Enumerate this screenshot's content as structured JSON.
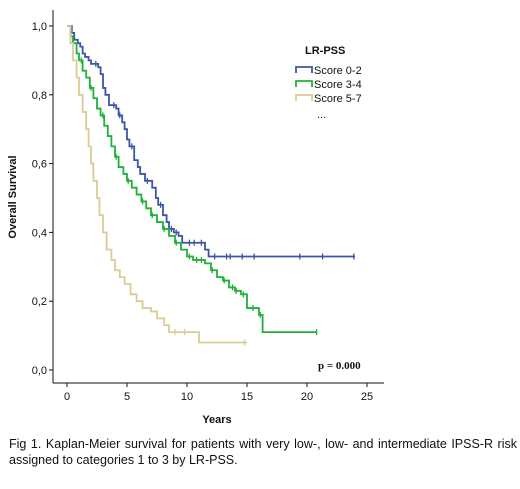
{
  "chart_data": {
    "type": "line",
    "subtype": "kaplan-meier",
    "xlabel": "Years",
    "ylabel": "Overall Survival",
    "xlim": [
      0,
      25
    ],
    "ylim": [
      0,
      1
    ],
    "x_ticks": [
      0,
      5,
      10,
      15,
      20,
      25
    ],
    "y_ticks": [
      0.0,
      0.2,
      0.4,
      0.6,
      0.8,
      1.0
    ],
    "x_tick_labels": [
      "0",
      "5",
      "10",
      "15",
      "20",
      "25"
    ],
    "y_tick_labels": [
      "0,0",
      "0,2",
      "0,4",
      "0,6",
      "0,8",
      "1,0"
    ],
    "grid": false,
    "legend": {
      "title": "LR-PSS",
      "placement": "top-right",
      "more": "..."
    },
    "annotation": "p = 0.000",
    "series": [
      {
        "name": "Score 0-2",
        "color": "#3c55a5",
        "steps": [
          [
            0,
            1.0
          ],
          [
            0.4,
            0.98
          ],
          [
            0.6,
            0.96
          ],
          [
            0.9,
            0.95
          ],
          [
            1.1,
            0.94
          ],
          [
            1.3,
            0.92
          ],
          [
            1.5,
            0.91
          ],
          [
            1.8,
            0.9
          ],
          [
            2.0,
            0.89
          ],
          [
            2.6,
            0.88
          ],
          [
            2.8,
            0.86
          ],
          [
            3.0,
            0.82
          ],
          [
            3.2,
            0.8
          ],
          [
            3.5,
            0.77
          ],
          [
            4.1,
            0.76
          ],
          [
            4.3,
            0.74
          ],
          [
            4.6,
            0.72
          ],
          [
            4.8,
            0.7
          ],
          [
            5.0,
            0.67
          ],
          [
            5.2,
            0.65
          ],
          [
            5.6,
            0.61
          ],
          [
            5.9,
            0.59
          ],
          [
            6.1,
            0.57
          ],
          [
            6.5,
            0.55
          ],
          [
            7.1,
            0.53
          ],
          [
            7.4,
            0.5
          ],
          [
            7.6,
            0.48
          ],
          [
            8.0,
            0.45
          ],
          [
            8.3,
            0.43
          ],
          [
            8.5,
            0.41
          ],
          [
            8.9,
            0.4
          ],
          [
            9.3,
            0.39
          ],
          [
            9.6,
            0.37
          ],
          [
            11.0,
            0.37
          ],
          [
            11.5,
            0.35
          ],
          [
            11.8,
            0.33
          ],
          [
            24.0,
            0.33
          ]
        ],
        "censored": [
          [
            2.4,
            0.89
          ],
          [
            3.9,
            0.77
          ],
          [
            4.4,
            0.74
          ],
          [
            5.4,
            0.65
          ],
          [
            6.7,
            0.55
          ],
          [
            7.8,
            0.48
          ],
          [
            8.7,
            0.41
          ],
          [
            9.1,
            0.4
          ],
          [
            10.2,
            0.37
          ],
          [
            10.6,
            0.37
          ],
          [
            11.2,
            0.37
          ],
          [
            12.3,
            0.33
          ],
          [
            13.3,
            0.33
          ],
          [
            13.6,
            0.33
          ],
          [
            14.6,
            0.33
          ],
          [
            15.6,
            0.33
          ],
          [
            19.4,
            0.33
          ],
          [
            21.3,
            0.33
          ],
          [
            23.9,
            0.33
          ]
        ]
      },
      {
        "name": "Score 3-4",
        "color": "#1fb13a",
        "steps": [
          [
            0,
            1.0
          ],
          [
            0.3,
            0.97
          ],
          [
            0.5,
            0.95
          ],
          [
            0.8,
            0.92
          ],
          [
            1.0,
            0.9
          ],
          [
            1.3,
            0.87
          ],
          [
            1.6,
            0.85
          ],
          [
            1.9,
            0.82
          ],
          [
            2.2,
            0.79
          ],
          [
            2.5,
            0.76
          ],
          [
            2.8,
            0.74
          ],
          [
            3.1,
            0.71
          ],
          [
            3.4,
            0.68
          ],
          [
            3.7,
            0.65
          ],
          [
            4.0,
            0.62
          ],
          [
            4.3,
            0.59
          ],
          [
            4.7,
            0.57
          ],
          [
            5.0,
            0.55
          ],
          [
            5.4,
            0.53
          ],
          [
            5.8,
            0.51
          ],
          [
            6.2,
            0.49
          ],
          [
            6.6,
            0.47
          ],
          [
            7.0,
            0.45
          ],
          [
            7.5,
            0.43
          ],
          [
            8.0,
            0.41
          ],
          [
            8.5,
            0.39
          ],
          [
            9.0,
            0.37
          ],
          [
            9.5,
            0.35
          ],
          [
            10.0,
            0.33
          ],
          [
            10.5,
            0.32
          ],
          [
            11.5,
            0.31
          ],
          [
            12.0,
            0.29
          ],
          [
            12.5,
            0.27
          ],
          [
            13.0,
            0.26
          ],
          [
            13.5,
            0.24
          ],
          [
            14.0,
            0.23
          ],
          [
            14.5,
            0.22
          ],
          [
            15.0,
            0.18
          ],
          [
            16.0,
            0.16
          ],
          [
            16.3,
            0.11
          ],
          [
            20.8,
            0.11
          ]
        ],
        "censored": [
          [
            1.2,
            0.9
          ],
          [
            2.0,
            0.82
          ],
          [
            3.0,
            0.74
          ],
          [
            4.1,
            0.62
          ],
          [
            5.1,
            0.55
          ],
          [
            6.3,
            0.49
          ],
          [
            7.1,
            0.45
          ],
          [
            8.1,
            0.41
          ],
          [
            9.1,
            0.37
          ],
          [
            10.2,
            0.33
          ],
          [
            10.8,
            0.32
          ],
          [
            11.2,
            0.32
          ],
          [
            12.1,
            0.29
          ],
          [
            13.1,
            0.26
          ],
          [
            13.8,
            0.24
          ],
          [
            14.1,
            0.23
          ],
          [
            14.7,
            0.22
          ],
          [
            15.5,
            0.18
          ],
          [
            16.1,
            0.16
          ],
          [
            20.8,
            0.11
          ]
        ]
      },
      {
        "name": "Score 5-7",
        "color": "#d8cd96",
        "steps": [
          [
            0,
            1.0
          ],
          [
            0.3,
            0.95
          ],
          [
            0.5,
            0.9
          ],
          [
            0.8,
            0.85
          ],
          [
            1.0,
            0.8
          ],
          [
            1.3,
            0.75
          ],
          [
            1.6,
            0.7
          ],
          [
            1.8,
            0.65
          ],
          [
            2.0,
            0.6
          ],
          [
            2.2,
            0.55
          ],
          [
            2.5,
            0.5
          ],
          [
            2.7,
            0.45
          ],
          [
            3.0,
            0.4
          ],
          [
            3.3,
            0.35
          ],
          [
            3.7,
            0.32
          ],
          [
            4.0,
            0.29
          ],
          [
            4.4,
            0.27
          ],
          [
            4.8,
            0.25
          ],
          [
            5.3,
            0.22
          ],
          [
            5.8,
            0.2
          ],
          [
            6.3,
            0.18
          ],
          [
            7.0,
            0.17
          ],
          [
            7.5,
            0.15
          ],
          [
            8.1,
            0.13
          ],
          [
            8.5,
            0.11
          ],
          [
            11.0,
            0.08
          ],
          [
            15.0,
            0.08
          ]
        ],
        "censored": [
          [
            9.0,
            0.11
          ],
          [
            9.8,
            0.11
          ],
          [
            14.8,
            0.08
          ]
        ]
      }
    ]
  },
  "caption": "Fig 1. Kaplan-Meier survival for patients with very low-, low- and intermediate IPSS-R risk assigned to categories 1 to 3 by LR-PSS."
}
